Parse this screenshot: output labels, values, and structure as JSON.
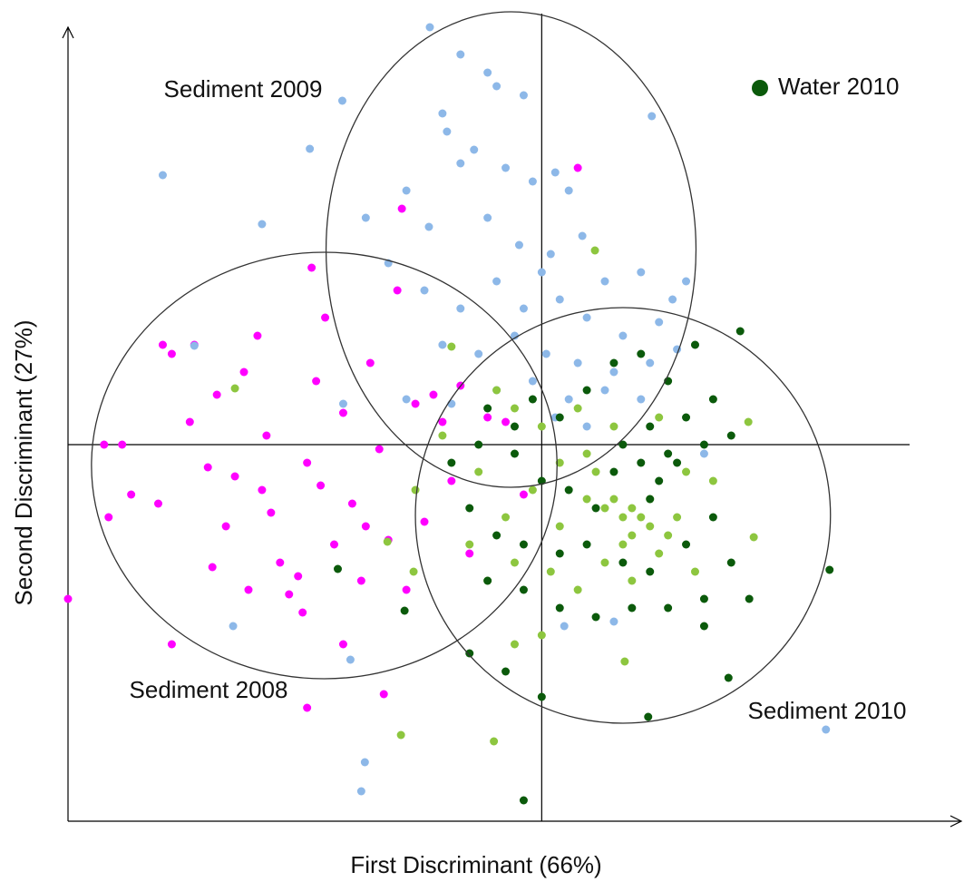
{
  "chart_data": {
    "type": "scatter",
    "x_label": "First Discriminant (66%)",
    "y_label": "Second Discriminant (27%)",
    "xlim": [
      -10.5,
      9.3
    ],
    "ylim": [
      -8.3,
      9.2
    ],
    "series": [
      {
        "name": "Sediment 2008",
        "color": "#ff00ff",
        "ellipse": {
          "cx": -4.82,
          "cy": -0.46,
          "rx": 5.16,
          "ry": 4.7
        },
        "x": [
          -9.7,
          -9.3,
          -9.6,
          -9.1,
          -8.5,
          -8.4,
          -8.2,
          -7.7,
          -7.8,
          -7.4,
          -7.2,
          -7.0,
          -6.8,
          -6.6,
          -6.3,
          -6.1,
          -6.0,
          -5.8,
          -5.6,
          -5.4,
          -5.2,
          -5.0,
          -4.8,
          -4.6,
          -4.4,
          -4.2,
          -4.0,
          -3.8,
          -3.6,
          -3.4,
          -3.2,
          -3.0,
          -2.8,
          -2.6,
          -2.4,
          -2.2,
          -2.0,
          -1.8,
          -1.6,
          -1.2,
          -0.8,
          -0.4,
          -5.1,
          -5.3,
          -4.4,
          -8.2,
          -10.5,
          -5.2,
          -3.5,
          -3.1,
          0.8,
          -6.2,
          -3.9,
          -4.9,
          -7.3,
          -6.5
        ],
        "y": [
          0.0,
          0.0,
          -1.6,
          -1.1,
          -1.3,
          2.2,
          2.0,
          2.2,
          0.5,
          -0.5,
          1.1,
          -1.8,
          -0.7,
          1.6,
          2.4,
          0.2,
          -1.5,
          -2.6,
          -3.3,
          -2.9,
          -0.4,
          1.4,
          2.8,
          -2.2,
          0.7,
          -1.3,
          -3.0,
          1.8,
          -0.1,
          -2.1,
          3.4,
          -3.2,
          0.9,
          -1.7,
          1.1,
          0.5,
          -0.8,
          1.3,
          -2.4,
          0.6,
          0.5,
          -1.1,
          3.9,
          -3.7,
          -4.4,
          -4.4,
          -3.4,
          -5.8,
          -5.5,
          5.2,
          6.1,
          -1.0,
          -1.8,
          -0.9,
          -2.7,
          -3.2
        ]
      },
      {
        "name": "Sediment 2009",
        "color": "#8db8e8",
        "ellipse": {
          "cx": -0.68,
          "cy": 4.3,
          "rx": 4.1,
          "ry": 5.24
        },
        "x": [
          -1.8,
          -1.0,
          -1.2,
          -0.4,
          -2.2,
          -2.1,
          -1.5,
          -0.8,
          -0.2,
          0.3,
          0.6,
          -3.0,
          -3.9,
          -2.5,
          -1.2,
          -0.5,
          0.2,
          0.9,
          1.4,
          2.2,
          2.9,
          3.2,
          -3.4,
          -2.6,
          -1.8,
          -1.0,
          -0.4,
          0.4,
          1.0,
          1.8,
          2.6,
          3.0,
          -2.2,
          -1.4,
          -0.6,
          0.1,
          0.8,
          1.6,
          2.4,
          -1.0,
          -0.2,
          0.6,
          1.4,
          2.2,
          -3.0,
          -2.0,
          0.3,
          1.0,
          3.6,
          -4.4,
          0.5,
          1.6,
          -1.8,
          0.0,
          -2.48,
          -8.4,
          6.3,
          -4.0,
          -3.92,
          -4.42,
          -6.2,
          -5.14,
          -7.7,
          -4.24,
          -6.84,
          2.44
        ],
        "y": [
          8.6,
          7.9,
          8.2,
          7.7,
          7.3,
          6.9,
          6.5,
          6.1,
          5.8,
          6.0,
          5.6,
          5.6,
          5.0,
          4.8,
          5.0,
          4.4,
          4.2,
          4.6,
          3.6,
          3.8,
          3.2,
          3.6,
          4.0,
          3.4,
          3.0,
          3.6,
          3.0,
          3.2,
          2.8,
          2.4,
          2.7,
          2.1,
          2.2,
          2.0,
          2.4,
          2.0,
          1.8,
          1.6,
          1.8,
          1.2,
          1.4,
          1.0,
          1.2,
          1.0,
          1.0,
          0.9,
          0.6,
          0.4,
          -0.2,
          0.9,
          -4.0,
          -3.9,
          6.2,
          3.8,
          9.2,
          5.94,
          -6.28,
          -7.64,
          -7.0,
          7.58,
          4.86,
          6.52,
          2.18,
          -4.74,
          -4.0,
          7.24
        ]
      },
      {
        "name": "Sediment 2010",
        "color": "#8dc63f",
        "ellipse": {
          "cx": 1.8,
          "cy": -1.56,
          "rx": 4.6,
          "ry": 4.58
        },
        "x": [
          -1.0,
          -0.6,
          0.0,
          0.4,
          0.8,
          1.2,
          1.6,
          2.0,
          2.2,
          2.4,
          1.8,
          1.4,
          2.8,
          3.0,
          2.6,
          1.0,
          0.4,
          -0.2,
          -0.8,
          -1.4,
          -1.6,
          -1.2,
          -0.6,
          0.2,
          0.8,
          1.4,
          2.0,
          3.4,
          3.8,
          2.6,
          1.6,
          -2.2,
          -2.8,
          0.0,
          -0.6,
          1.0,
          2.0,
          2.4,
          1.8,
          3.2,
          1.18,
          -3.12,
          -1.06,
          -2.0,
          -6.8,
          -2.84,
          -3.42,
          4.7,
          4.58,
          1.84
        ],
        "y": [
          1.2,
          0.8,
          0.4,
          -0.4,
          0.8,
          -0.6,
          -1.2,
          -1.4,
          -1.6,
          -1.8,
          -1.6,
          -1.4,
          -2.0,
          -1.6,
          -2.4,
          -1.2,
          -1.8,
          -1.0,
          -1.6,
          -0.6,
          -2.2,
          -3.0,
          -2.6,
          -2.8,
          -3.2,
          -2.6,
          -3.0,
          -2.8,
          -0.8,
          0.6,
          0.4,
          0.2,
          -1.0,
          -4.2,
          -4.4,
          -0.2,
          -2.0,
          -1.2,
          -2.2,
          -0.6,
          4.28,
          -6.4,
          -6.54,
          2.16,
          1.24,
          -2.8,
          -2.14,
          -2.04,
          0.5,
          -4.78
        ]
      },
      {
        "name": "Water 2010",
        "color": "#0b5a0b",
        "x": [
          -1.2,
          -0.6,
          -0.2,
          0.4,
          1.0,
          1.6,
          2.2,
          2.8,
          3.4,
          3.8,
          4.2,
          3.6,
          2.8,
          2.4,
          2.2,
          2.6,
          3.0,
          1.6,
          1.2,
          0.6,
          0.0,
          -0.6,
          -1.4,
          -2.0,
          -1.6,
          -1.0,
          -0.4,
          0.4,
          1.0,
          1.8,
          2.4,
          3.2,
          3.8,
          4.2,
          3.6,
          2.8,
          2.0,
          1.2,
          0.4,
          -0.4,
          -1.2,
          -1.6,
          -0.8,
          3.6,
          4.6,
          2.4,
          3.2,
          1.8,
          -0.4,
          2.36,
          6.38,
          4.14,
          4.4,
          0.0,
          -4.52,
          -3.04
        ],
        "y": [
          0.8,
          0.4,
          1.0,
          0.6,
          1.2,
          1.8,
          2.0,
          1.4,
          2.2,
          1.0,
          0.2,
          0.0,
          -0.2,
          0.4,
          -0.4,
          -0.8,
          -0.4,
          -0.6,
          -1.4,
          -1.0,
          -0.8,
          -0.2,
          0.0,
          -0.4,
          -1.4,
          -2.0,
          -2.2,
          -2.4,
          -2.2,
          -2.6,
          -2.8,
          -2.2,
          -1.6,
          -2.6,
          -3.4,
          -3.6,
          -3.6,
          -3.8,
          -3.6,
          -3.2,
          -3.0,
          -4.6,
          -5.0,
          -4.0,
          -3.4,
          -1.2,
          0.6,
          0.0,
          -7.84,
          -6.0,
          -2.76,
          -5.14,
          2.5,
          -5.56,
          -2.74,
          -3.66
        ]
      }
    ]
  }
}
